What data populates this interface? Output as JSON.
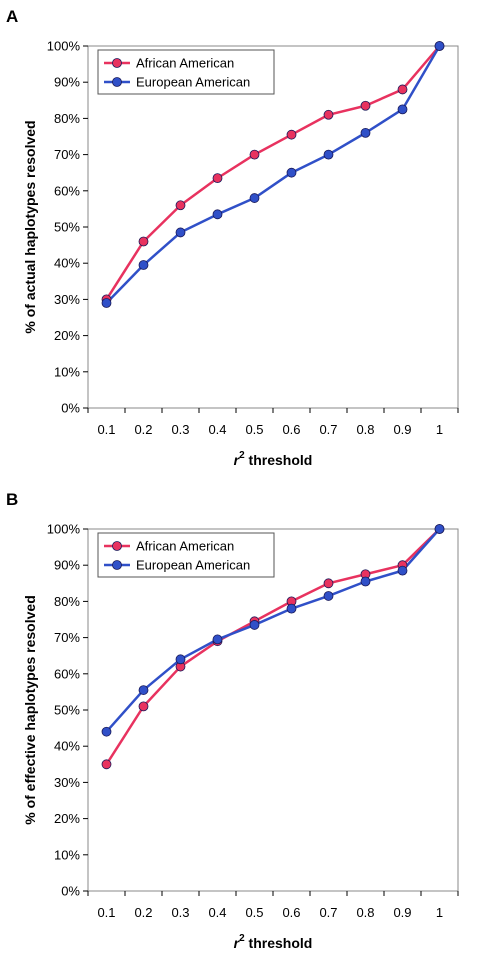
{
  "chart_data": [
    {
      "type": "line",
      "panel_label": "A",
      "ylabel": "% of actual haplotypes resolved",
      "xlabel_var": "r",
      "xlabel_sup": "2",
      "xlabel_rest": " threshold",
      "categories": [
        "0.1",
        "0.2",
        "0.3",
        "0.4",
        "0.5",
        "0.6",
        "0.7",
        "0.8",
        "0.9",
        "1"
      ],
      "y_ticks": [
        "0%",
        "10%",
        "20%",
        "30%",
        "40%",
        "50%",
        "60%",
        "70%",
        "80%",
        "90%",
        "100%"
      ],
      "ylim": [
        0,
        100
      ],
      "grid": false,
      "legend_position": "top-left",
      "series": [
        {
          "name": "African American",
          "color": "#e8325f",
          "values": [
            30,
            46,
            56,
            63.5,
            70,
            75.5,
            81,
            83.5,
            88,
            100
          ]
        },
        {
          "name": "European American",
          "color": "#3050c8",
          "values": [
            29,
            39.5,
            48.5,
            53.5,
            58,
            65,
            70,
            76,
            82.5,
            100
          ]
        }
      ]
    },
    {
      "type": "line",
      "panel_label": "B",
      "ylabel": "% of effective haplotypes resolved",
      "xlabel_var": "r",
      "xlabel_sup": "2",
      "xlabel_rest": " threshold",
      "categories": [
        "0.1",
        "0.2",
        "0.3",
        "0.4",
        "0.5",
        "0.6",
        "0.7",
        "0.8",
        "0.9",
        "1"
      ],
      "y_ticks": [
        "0%",
        "10%",
        "20%",
        "30%",
        "40%",
        "50%",
        "60%",
        "70%",
        "80%",
        "90%",
        "100%"
      ],
      "ylim": [
        0,
        100
      ],
      "grid": false,
      "legend_position": "top-left",
      "series": [
        {
          "name": "African American",
          "color": "#e8325f",
          "values": [
            35,
            51,
            62,
            69,
            74.5,
            80,
            85,
            87.5,
            90,
            100
          ]
        },
        {
          "name": "European American",
          "color": "#3050c8",
          "values": [
            44,
            55.5,
            64,
            69.5,
            73.5,
            78,
            81.5,
            85.5,
            88.5,
            100
          ]
        }
      ]
    }
  ]
}
